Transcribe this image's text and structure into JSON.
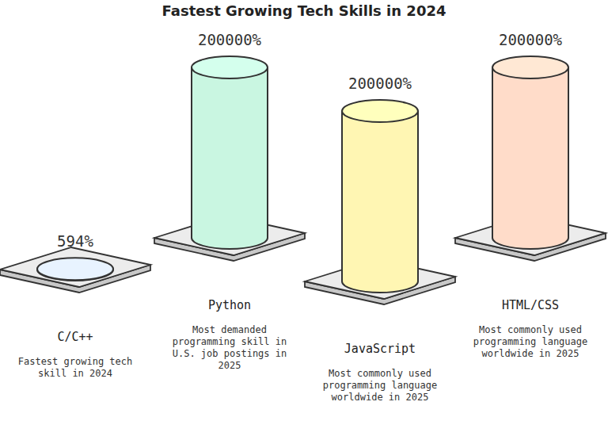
{
  "chart_data": {
    "type": "bar",
    "title": "Fastest Growing Tech Skills in 2024",
    "categories": [
      "C/C++",
      "Python",
      "JavaScript",
      "HTML/CSS"
    ],
    "descriptions": [
      "Fastest growing tech skill in 2024",
      "Most demanded programming skill in U.S. job postings in 2025",
      "Most commonly used programming language worldwide in 2025",
      "Most commonly used programming language worldwide in 2025"
    ],
    "values": [
      594,
      200000,
      200000,
      200000
    ],
    "value_labels": [
      "594%",
      "200000%",
      "200000%",
      "200000%"
    ],
    "colors": [
      "#dce6ff",
      "#c9f6e1",
      "#fff6b3",
      "#ffdcc9"
    ],
    "data_labels": true,
    "tick_labels": false
  }
}
